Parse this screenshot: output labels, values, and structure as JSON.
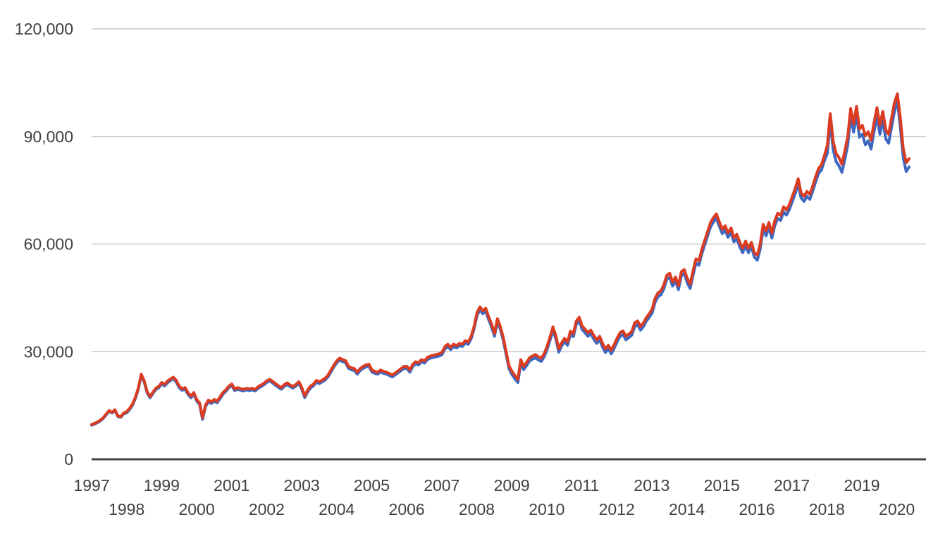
{
  "chart_data": {
    "type": "line",
    "title": "",
    "xlabel": "",
    "ylabel": "",
    "x_unit": "month",
    "x_start": "1997-01",
    "x_end": "2020-05",
    "x_year_ticks": [
      1997,
      1998,
      1999,
      2000,
      2001,
      2002,
      2003,
      2004,
      2005,
      2006,
      2007,
      2008,
      2009,
      2010,
      2011,
      2012,
      2013,
      2014,
      2015,
      2016,
      2017,
      2018,
      2019,
      2020
    ],
    "y_ticks": [
      "0",
      "30,000",
      "60,000",
      "90,000",
      "120,000"
    ],
    "y_tick_values": [
      0,
      30000,
      60000,
      90000,
      120000
    ],
    "ylim": [
      0,
      120000
    ],
    "grid": true,
    "legend": "none",
    "colors": {
      "grid": "#cccccc",
      "axis": "#424242",
      "tick_label": "#404040",
      "series_blue": "#3C68C2",
      "series_red": "#DA3B21",
      "background": "#ffffff"
    },
    "series": [
      {
        "name": "blue",
        "color_key": "series_blue",
        "values": [
          9500,
          9800,
          10200,
          10700,
          11400,
          12400,
          13400,
          12900,
          13600,
          11900,
          11700,
          12700,
          12950,
          13850,
          15050,
          16950,
          19550,
          23350,
          21550,
          18550,
          17150,
          18350,
          19450,
          19950,
          20950,
          20450,
          21350,
          21950,
          22450,
          21550,
          19950,
          19250,
          19550,
          18150,
          17150,
          18150,
          16250,
          15250,
          11150,
          14650,
          16050,
          15550,
          16250,
          15750,
          16950,
          18150,
          18950,
          19950,
          20550,
          19150,
          19550,
          19250,
          19050,
          19350,
          19150,
          19350,
          19050,
          19750,
          20250,
          20750,
          21450,
          21850,
          21250,
          20650,
          20050,
          19550,
          20350,
          20850,
          20250,
          19850,
          20450,
          21150,
          19500,
          17200,
          18800,
          19900,
          20500,
          21500,
          21100,
          21600,
          22100,
          23000,
          24400,
          25800,
          26950,
          27650,
          27250,
          26950,
          25350,
          24950,
          24750,
          23750,
          24750,
          25350,
          25750,
          25950,
          24350,
          23950,
          23750,
          24350,
          23950,
          23750,
          23350,
          22950,
          23550,
          24150,
          24750,
          25350,
          25300,
          24300,
          25900,
          26600,
          26300,
          27200,
          26800,
          27800,
          28200,
          28400,
          28600,
          28800,
          29150,
          30750,
          31450,
          30550,
          31450,
          31050,
          31650,
          31450,
          32450,
          32050,
          33650,
          36350,
          40100,
          41700,
          40600,
          41300,
          38900,
          36900,
          34300,
          38400,
          36200,
          33200,
          29100,
          25200,
          23600,
          22400,
          21400,
          26900,
          25000,
          26100,
          27400,
          27900,
          28300,
          27700,
          27300,
          28500,
          30600,
          33100,
          36000,
          33600,
          29900,
          31600,
          32800,
          31800,
          34800,
          34200,
          37600,
          38700,
          36200,
          35300,
          34300,
          35000,
          33500,
          32300,
          33300,
          31300,
          29800,
          30800,
          29400,
          31000,
          32800,
          34300,
          34800,
          33300,
          33900,
          34600,
          37000,
          37600,
          36000,
          37000,
          38500,
          39600,
          40800,
          43800,
          45300,
          45900,
          47500,
          50200,
          50800,
          48300,
          49700,
          47300,
          51200,
          51800,
          49300,
          47600,
          51300,
          54700,
          54100,
          57300,
          59800,
          62300,
          64800,
          66200,
          67200,
          65000,
          62900,
          63900,
          61900,
          63300,
          60600,
          61500,
          59300,
          57600,
          59600,
          57600,
          59300,
          56400,
          55500,
          58600,
          64100,
          62300,
          64600,
          61700,
          65100,
          67200,
          66600,
          69000,
          68100,
          69600,
          71900,
          74100,
          76800,
          72900,
          71900,
          73300,
          72500,
          74800,
          77400,
          79700,
          80700,
          83300,
          85300,
          94100,
          86300,
          83000,
          81800,
          80000,
          83700,
          87700,
          95500,
          91200,
          96100,
          89800,
          90600,
          87700,
          88800,
          86500,
          91400,
          95500,
          90600,
          94500,
          89400,
          88100,
          92600,
          97000,
          100000,
          92600,
          84100,
          80200,
          81500
        ]
      },
      {
        "name": "red",
        "color_key": "series_red",
        "values": [
          9700,
          10000,
          10400,
          10900,
          11600,
          12600,
          13600,
          13100,
          13800,
          12100,
          11900,
          12900,
          13300,
          14200,
          15400,
          17300,
          19900,
          23700,
          21900,
          18900,
          17500,
          18700,
          19800,
          20300,
          21400,
          20900,
          21800,
          22400,
          22900,
          22000,
          20400,
          19700,
          20000,
          18600,
          17600,
          18600,
          16700,
          15700,
          11600,
          15100,
          16500,
          16000,
          16700,
          16200,
          17400,
          18600,
          19400,
          20400,
          21000,
          19600,
          20000,
          19700,
          19500,
          19800,
          19600,
          19800,
          19500,
          20200,
          20700,
          21200,
          21900,
          22300,
          21700,
          21100,
          20500,
          20000,
          20800,
          21300,
          20700,
          20300,
          20900,
          21600,
          20000,
          17700,
          19300,
          20400,
          21000,
          22000,
          21600,
          22100,
          22600,
          23500,
          24900,
          26300,
          27500,
          28200,
          27800,
          27500,
          25900,
          25500,
          25300,
          24300,
          25300,
          25900,
          26300,
          26500,
          24900,
          24500,
          24300,
          24900,
          24500,
          24300,
          23900,
          23500,
          24100,
          24700,
          25300,
          25900,
          25900,
          24900,
          26500,
          27200,
          26900,
          27800,
          27400,
          28400,
          28800,
          29000,
          29200,
          29400,
          29800,
          31400,
          32100,
          31200,
          32100,
          31700,
          32300,
          32100,
          33100,
          32700,
          34300,
          37000,
          40900,
          42500,
          41400,
          42100,
          39700,
          37700,
          35100,
          39200,
          37000,
          34000,
          29900,
          26000,
          24500,
          23300,
          22300,
          27800,
          25900,
          27000,
          28300,
          28800,
          29200,
          28600,
          28200,
          29400,
          31500,
          34000,
          36900,
          34500,
          30800,
          32500,
          33700,
          32700,
          35700,
          35100,
          38500,
          39600,
          37200,
          36300,
          35300,
          36000,
          34500,
          33300,
          34300,
          32300,
          30800,
          31800,
          30400,
          32000,
          33800,
          35300,
          35800,
          34300,
          34900,
          35600,
          38000,
          38600,
          37000,
          38000,
          39500,
          40600,
          41900,
          44900,
          46400,
          47000,
          48600,
          51300,
          51900,
          49400,
          50800,
          48400,
          52300,
          52900,
          50500,
          48800,
          52500,
          55900,
          55300,
          58500,
          61000,
          63500,
          66000,
          67400,
          68400,
          66200,
          64100,
          65100,
          63100,
          64500,
          61800,
          62700,
          60500,
          58800,
          60800,
          58800,
          60500,
          57600,
          56900,
          60000,
          65500,
          63700,
          66000,
          63100,
          66500,
          68600,
          68000,
          70400,
          69500,
          71000,
          73300,
          75500,
          78200,
          74300,
          73300,
          74700,
          73900,
          76200,
          78800,
          81100,
          82100,
          84700,
          87600,
          96400,
          88600,
          85300,
          84100,
          82300,
          86000,
          90000,
          97800,
          93500,
          98400,
          92100,
          93100,
          90200,
          91300,
          89000,
          93900,
          98000,
          93100,
          97000,
          91900,
          90600,
          95100,
          99500,
          101900,
          95100,
          86600,
          82700,
          83800
        ]
      }
    ]
  }
}
